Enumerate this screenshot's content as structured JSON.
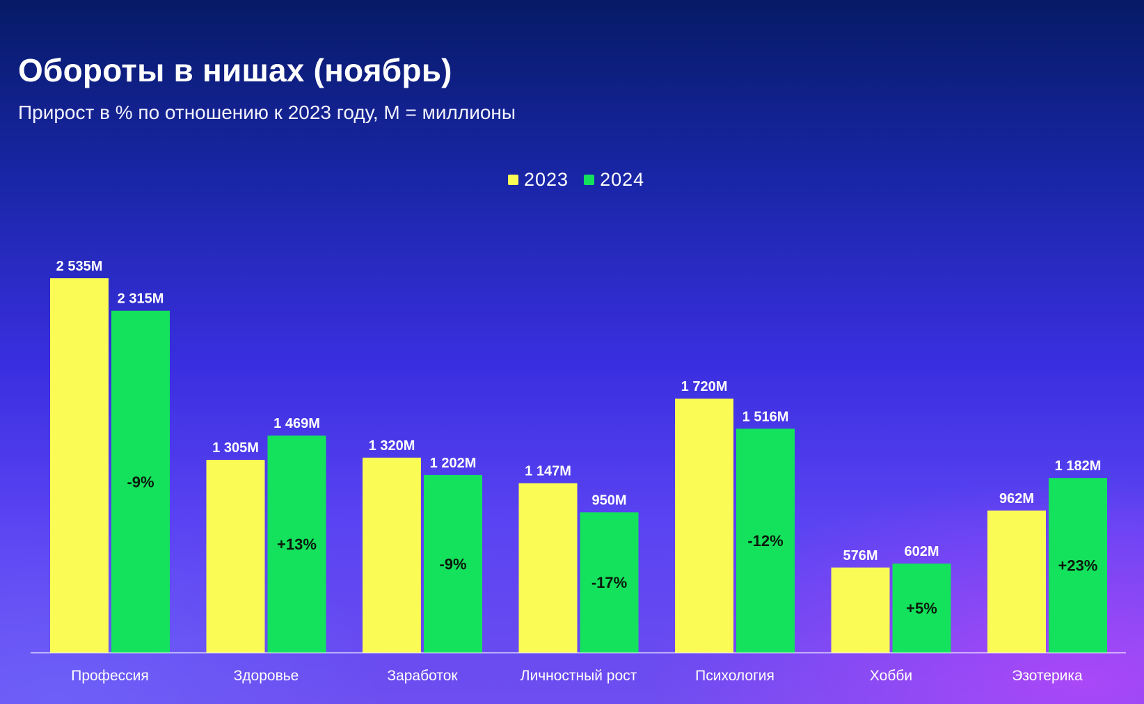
{
  "chart_data": {
    "type": "bar",
    "title": "Обороты в нишах (ноябрь)",
    "subtitle": "Прирост в % по отношению к 2023 году, M = миллионы",
    "categories": [
      "Профессия",
      "Здоровье",
      "Заработок",
      "Личностный рост",
      "Психология",
      "Хобби",
      "Эзотерика"
    ],
    "series": [
      {
        "name": "2023",
        "color": "#fbfb55",
        "values": [
          2535,
          1305,
          1320,
          1147,
          1720,
          576,
          962
        ],
        "labels": [
          "2 535M",
          "1 305M",
          "1 320M",
          "1 147M",
          "1 720M",
          "576M",
          "962M"
        ]
      },
      {
        "name": "2024",
        "color": "#14e25c",
        "values": [
          2315,
          1469,
          1202,
          950,
          1516,
          602,
          1182
        ],
        "labels": [
          "2 315M",
          "1 469M",
          "1 202M",
          "950M",
          "1 516M",
          "602M",
          "1 182M"
        ]
      }
    ],
    "growth_labels": [
      "-9%",
      "+13%",
      "-9%",
      "-17%",
      "-12%",
      "+5%",
      "+23%"
    ],
    "ylim": [
      0,
      2535
    ],
    "unit": "M",
    "legend_position": "top-center",
    "grid": false,
    "xlabel": "",
    "ylabel": ""
  }
}
